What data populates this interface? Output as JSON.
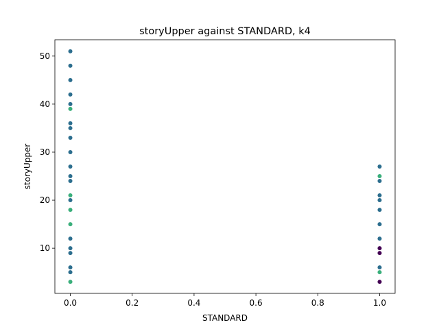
{
  "chart_data": {
    "type": "scatter",
    "title": "storyUpper against STANDARD, k4",
    "xlabel": "STANDARD",
    "ylabel": "storyUpper",
    "xlim": [
      -0.05,
      1.05
    ],
    "ylim": [
      0.6,
      53.4
    ],
    "xticks": [
      0.0,
      0.2,
      0.4,
      0.6,
      0.8,
      1.0
    ],
    "xtick_labels": [
      "0.0",
      "0.2",
      "0.4",
      "0.6",
      "0.8",
      "1.0"
    ],
    "yticks": [
      10,
      20,
      30,
      40,
      50
    ],
    "ytick_labels": [
      "10",
      "20",
      "30",
      "40",
      "50"
    ],
    "grid": false,
    "legend": "none",
    "colors": {
      "blue": "#2c6e8e",
      "green": "#3aaf7b",
      "purple": "#440154"
    },
    "points": [
      {
        "x": 0,
        "y": 51,
        "c": "blue"
      },
      {
        "x": 0,
        "y": 48,
        "c": "blue"
      },
      {
        "x": 0,
        "y": 45,
        "c": "blue"
      },
      {
        "x": 0,
        "y": 42,
        "c": "blue"
      },
      {
        "x": 0,
        "y": 40,
        "c": "blue"
      },
      {
        "x": 0,
        "y": 39,
        "c": "green"
      },
      {
        "x": 0,
        "y": 36,
        "c": "blue"
      },
      {
        "x": 0,
        "y": 35,
        "c": "blue"
      },
      {
        "x": 0,
        "y": 33,
        "c": "blue"
      },
      {
        "x": 0,
        "y": 30,
        "c": "blue"
      },
      {
        "x": 0,
        "y": 27,
        "c": "blue"
      },
      {
        "x": 0,
        "y": 25,
        "c": "blue"
      },
      {
        "x": 0,
        "y": 24,
        "c": "blue"
      },
      {
        "x": 0,
        "y": 21,
        "c": "green"
      },
      {
        "x": 0,
        "y": 20,
        "c": "blue"
      },
      {
        "x": 0,
        "y": 18,
        "c": "green"
      },
      {
        "x": 0,
        "y": 15,
        "c": "green"
      },
      {
        "x": 0,
        "y": 12,
        "c": "blue"
      },
      {
        "x": 0,
        "y": 10,
        "c": "blue"
      },
      {
        "x": 0,
        "y": 9,
        "c": "blue"
      },
      {
        "x": 0,
        "y": 6,
        "c": "blue"
      },
      {
        "x": 0,
        "y": 5,
        "c": "blue"
      },
      {
        "x": 0,
        "y": 3,
        "c": "green"
      },
      {
        "x": 1,
        "y": 27,
        "c": "blue"
      },
      {
        "x": 1,
        "y": 25,
        "c": "green"
      },
      {
        "x": 1,
        "y": 24,
        "c": "blue"
      },
      {
        "x": 1,
        "y": 21,
        "c": "blue"
      },
      {
        "x": 1,
        "y": 20,
        "c": "blue"
      },
      {
        "x": 1,
        "y": 18,
        "c": "blue"
      },
      {
        "x": 1,
        "y": 15,
        "c": "blue"
      },
      {
        "x": 1,
        "y": 12,
        "c": "blue"
      },
      {
        "x": 1,
        "y": 10,
        "c": "purple"
      },
      {
        "x": 1,
        "y": 9,
        "c": "purple"
      },
      {
        "x": 1,
        "y": 6,
        "c": "blue"
      },
      {
        "x": 1,
        "y": 5,
        "c": "green"
      },
      {
        "x": 1,
        "y": 3,
        "c": "purple"
      }
    ]
  }
}
